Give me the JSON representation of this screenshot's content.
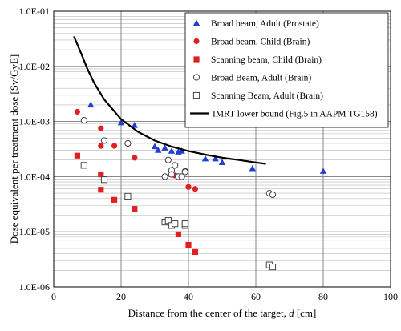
{
  "chart_data": {
    "type": "scatter",
    "title": "",
    "xlabel": "Distance from the center of the target, ",
    "xlabel_var": "d",
    "xlabel_unit": " [cm]",
    "ylabel": "Dose equivalent per treatment dose  [Sv/GyE]",
    "xlim": [
      0,
      100
    ],
    "ylim": [
      1e-06,
      0.1
    ],
    "yscale": "log",
    "x_ticks": [
      "0",
      "20",
      "40",
      "60",
      "80",
      "100"
    ],
    "y_ticks": [
      "1.0E-06",
      "1.0E-05",
      "1.0E-04",
      "1.0E-03",
      "1.0E-02",
      "1.0E-01"
    ],
    "grid": "major-and-minor-horizontal, major-vertical",
    "legend_position": "top-right",
    "series": [
      {
        "name": "Broad beam, Adult (Prostate)",
        "marker": "triangle",
        "filled": true,
        "color": "#1f3fd0",
        "points": [
          [
            11,
            0.002
          ],
          [
            20,
            0.00095
          ],
          [
            24,
            0.00085
          ],
          [
            30,
            0.00035
          ],
          [
            31,
            0.0003
          ],
          [
            33,
            0.00033
          ],
          [
            35,
            0.00029
          ],
          [
            37,
            0.00028
          ],
          [
            38,
            0.00029
          ],
          [
            45,
            0.00021
          ],
          [
            48,
            0.00021
          ],
          [
            50,
            0.00018
          ],
          [
            59,
            0.00014
          ],
          [
            80,
            0.000125
          ]
        ]
      },
      {
        "name": "Broad beam, Child (Brain)",
        "marker": "circle",
        "filled": true,
        "color": "#e02020",
        "points": [
          [
            7,
            0.0015
          ],
          [
            14,
            0.00075
          ],
          [
            14,
            0.00036
          ],
          [
            18,
            0.00036
          ],
          [
            24,
            0.00022
          ],
          [
            36,
            0.000105
          ],
          [
            40,
            6.5e-05
          ],
          [
            42,
            6e-05
          ]
        ]
      },
      {
        "name": "Scanning beam, Child (Brain)",
        "marker": "square",
        "filled": true,
        "color": "#e02020",
        "points": [
          [
            7,
            0.00024
          ],
          [
            14,
            0.00011
          ],
          [
            14,
            5.8e-05
          ],
          [
            18,
            3.8e-05
          ],
          [
            24,
            2.6e-05
          ],
          [
            37,
            9e-06
          ],
          [
            40,
            5.8e-06
          ],
          [
            42,
            4.3e-06
          ]
        ]
      },
      {
        "name": "Broad Beam, Adult (Brain)",
        "marker": "circle",
        "filled": false,
        "color": "#444444",
        "points": [
          [
            9,
            0.00105
          ],
          [
            15,
            0.00045
          ],
          [
            22,
            0.0004
          ],
          [
            33,
            0.0001
          ],
          [
            34,
            0.0002
          ],
          [
            35,
            0.00013
          ],
          [
            35,
            0.00011
          ],
          [
            36,
            0.00016
          ],
          [
            37,
            0.0001
          ],
          [
            38,
            0.0001
          ],
          [
            39,
            0.000125
          ],
          [
            39,
            0.000122
          ],
          [
            64,
            5e-05
          ],
          [
            65,
            4.7e-05
          ]
        ]
      },
      {
        "name": "Scanning Beam, Adult (Brain)",
        "marker": "square",
        "filled": false,
        "color": "#444444",
        "points": [
          [
            9,
            0.00016
          ],
          [
            15,
            8.8e-05
          ],
          [
            22,
            4.4e-05
          ],
          [
            33,
            1.5e-05
          ],
          [
            34,
            1.6e-05
          ],
          [
            35,
            1.3e-05
          ],
          [
            36,
            1.4e-05
          ],
          [
            39,
            1.3e-05
          ],
          [
            39,
            1.4e-05
          ],
          [
            64,
            2.5e-06
          ],
          [
            65,
            2.3e-06
          ]
        ]
      },
      {
        "name": "IMRT lower bound (Fig.5 in AAPM TG158)",
        "line": true,
        "color": "#000000",
        "points": [
          [
            6,
            0.035
          ],
          [
            8,
            0.018
          ],
          [
            10,
            0.009
          ],
          [
            12,
            0.005
          ],
          [
            15,
            0.0025
          ],
          [
            20,
            0.0011
          ],
          [
            25,
            0.00065
          ],
          [
            30,
            0.00045
          ],
          [
            35,
            0.00035
          ],
          [
            40,
            0.00029
          ],
          [
            45,
            0.00025
          ],
          [
            50,
            0.00022
          ],
          [
            55,
            0.0002
          ],
          [
            60,
            0.00018
          ],
          [
            63,
            0.00017
          ]
        ]
      }
    ]
  }
}
